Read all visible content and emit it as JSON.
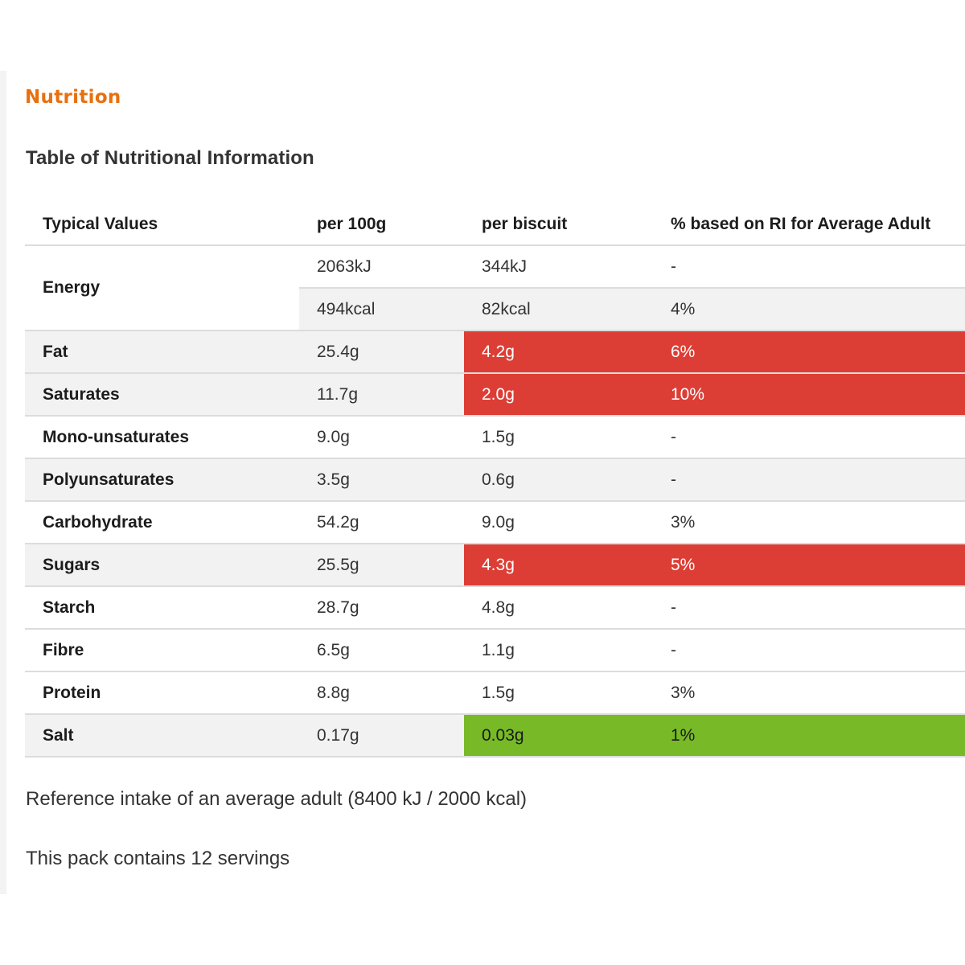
{
  "section_title": "Nutrition",
  "table_title": "Table of Nutritional Information",
  "headers": {
    "label": "Typical Values",
    "per_100g": "per 100g",
    "per_biscuit": "per biscuit",
    "ri": "% based on RI for Average Adult"
  },
  "energy": {
    "label": "Energy",
    "kj": {
      "per_100g": "2063kJ",
      "per_biscuit": "344kJ",
      "ri": "-"
    },
    "kcal": {
      "per_100g": "494kcal",
      "per_biscuit": "82kcal",
      "ri": "4%"
    }
  },
  "rows": [
    {
      "label": "Fat",
      "per_100g": "25.4g",
      "per_biscuit": "4.2g",
      "ri": "6%"
    },
    {
      "label": "Saturates",
      "per_100g": "11.7g",
      "per_biscuit": "2.0g",
      "ri": "10%"
    },
    {
      "label": "Mono-unsaturates",
      "per_100g": "9.0g",
      "per_biscuit": "1.5g",
      "ri": "-"
    },
    {
      "label": "Polyunsaturates",
      "per_100g": "3.5g",
      "per_biscuit": "0.6g",
      "ri": "-"
    },
    {
      "label": "Carbohydrate",
      "per_100g": "54.2g",
      "per_biscuit": "9.0g",
      "ri": "3%"
    },
    {
      "label": "Sugars",
      "per_100g": "25.5g",
      "per_biscuit": "4.3g",
      "ri": "5%"
    },
    {
      "label": "Starch",
      "per_100g": "28.7g",
      "per_biscuit": "4.8g",
      "ri": "-"
    },
    {
      "label": "Fibre",
      "per_100g": "6.5g",
      "per_biscuit": "1.1g",
      "ri": "-"
    },
    {
      "label": "Protein",
      "per_100g": "8.8g",
      "per_biscuit": "1.5g",
      "ri": "3%"
    },
    {
      "label": "Salt",
      "per_100g": "0.17g",
      "per_biscuit": "0.03g",
      "ri": "1%"
    }
  ],
  "colors": {
    "title_orange": "#e8700e",
    "high_red": "#dc3e35",
    "low_green": "#78b928",
    "shade_grey": "#f2f2f2"
  },
  "footnotes": {
    "reference": "Reference intake of an average adult (8400 kJ / 2000 kcal)",
    "servings": "This pack contains 12 servings"
  }
}
